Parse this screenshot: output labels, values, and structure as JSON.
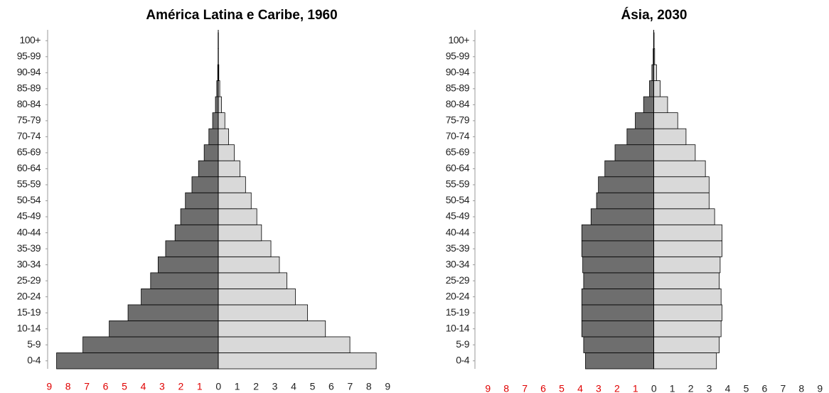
{
  "chart_data": [
    {
      "type": "pyramid",
      "title": "América Latina e Caribe, 1960",
      "categories": [
        "0-4",
        "5-9",
        "10-14",
        "15-19",
        "20-24",
        "25-29",
        "30-34",
        "35-39",
        "40-44",
        "45-49",
        "50-54",
        "55-59",
        "60-64",
        "65-69",
        "70-74",
        "75-79",
        "80-84",
        "85-89",
        "90-94",
        "95-99",
        "100+"
      ],
      "series": [
        {
          "color": "#6e6e6e",
          "values": [
            -8.6,
            -7.2,
            -5.8,
            -4.8,
            -4.1,
            -3.6,
            -3.2,
            -2.8,
            -2.3,
            -2.0,
            -1.75,
            -1.4,
            -1.05,
            -0.75,
            -0.5,
            -0.3,
            -0.15,
            -0.08,
            -0.03,
            -0.01,
            -0.01
          ]
        },
        {
          "color": "#d9d9d9",
          "values": [
            8.4,
            7.0,
            5.7,
            4.75,
            4.1,
            3.65,
            3.25,
            2.8,
            2.3,
            2.05,
            1.75,
            1.45,
            1.15,
            0.85,
            0.55,
            0.35,
            0.17,
            0.08,
            0.03,
            0.01,
            0.01
          ]
        }
      ],
      "xlim": [
        -9,
        9
      ],
      "xticks": [
        {
          "value": -9,
          "label": "9"
        },
        {
          "value": -8,
          "label": "8"
        },
        {
          "value": -7,
          "label": "7"
        },
        {
          "value": -6,
          "label": "6"
        },
        {
          "value": -5,
          "label": "5"
        },
        {
          "value": -4,
          "label": "4"
        },
        {
          "value": -3,
          "label": "3"
        },
        {
          "value": -2,
          "label": "2"
        },
        {
          "value": -1,
          "label": "1"
        },
        0,
        1,
        2,
        3,
        4,
        5,
        6,
        7,
        8,
        9
      ],
      "negative_tick_color": "#e00000"
    },
    {
      "type": "pyramid",
      "title": "Ásia, 2030",
      "categories": [
        "0-4",
        "5-9",
        "10-14",
        "15-19",
        "20-24",
        "25-29",
        "30-34",
        "35-39",
        "40-44",
        "45-49",
        "50-54",
        "55-59",
        "60-64",
        "65-69",
        "70-74",
        "75-79",
        "80-84",
        "85-89",
        "90-94",
        "95-99",
        "100+"
      ],
      "series": [
        {
          "color": "#6e6e6e",
          "values": [
            -3.7,
            -3.8,
            -3.9,
            -3.9,
            -3.9,
            -3.8,
            -3.85,
            -3.9,
            -3.9,
            -3.4,
            -3.1,
            -3.0,
            -2.65,
            -2.1,
            -1.45,
            -1.0,
            -0.55,
            -0.23,
            -0.1,
            -0.03,
            -0.01
          ]
        },
        {
          "color": "#d9d9d9",
          "values": [
            3.4,
            3.55,
            3.65,
            3.7,
            3.65,
            3.55,
            3.6,
            3.7,
            3.7,
            3.3,
            3.0,
            3.0,
            2.8,
            2.25,
            1.75,
            1.3,
            0.75,
            0.35,
            0.15,
            0.05,
            0.02
          ]
        }
      ],
      "xlim": [
        -9,
        9
      ],
      "xticks": [
        {
          "value": -9,
          "label": "9"
        },
        {
          "value": -8,
          "label": "8"
        },
        {
          "value": -7,
          "label": "7"
        },
        {
          "value": -6,
          "label": "6"
        },
        {
          "value": -5,
          "label": "5"
        },
        {
          "value": -4,
          "label": "4"
        },
        {
          "value": -3,
          "label": "3"
        },
        {
          "value": -2,
          "label": "2"
        },
        {
          "value": -1,
          "label": "1"
        },
        0,
        1,
        2,
        3,
        4,
        5,
        6,
        7,
        8,
        9
      ],
      "negative_tick_color": "#e00000"
    }
  ]
}
